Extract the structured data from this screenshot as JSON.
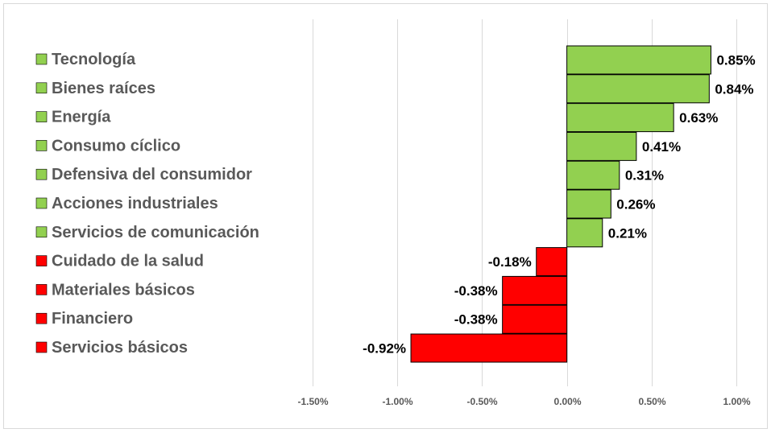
{
  "chart_data": {
    "type": "bar",
    "orientation": "horizontal",
    "categories": [
      "Tecnología",
      "Bienes raíces",
      "Energía",
      "Consumo cíclico",
      "Defensiva del consumidor",
      "Acciones industriales",
      "Servicios de comunicación",
      "Cuidado de la salud",
      "Materiales básicos",
      "Financiero",
      "Servicios básicos"
    ],
    "values": [
      0.85,
      0.84,
      0.63,
      0.41,
      0.31,
      0.26,
      0.21,
      -0.18,
      -0.38,
      -0.38,
      -0.92
    ],
    "value_labels": [
      "0.85%",
      "0.84%",
      "0.63%",
      "0.41%",
      "0.31%",
      "0.26%",
      "0.21%",
      "-0.18%",
      "-0.38%",
      "-0.38%",
      "-0.92%"
    ],
    "xlim": [
      -1.5,
      1.0
    ],
    "x_ticks": [
      -1.5,
      -1.0,
      -0.5,
      0.0,
      0.5,
      1.0
    ],
    "x_tick_labels": [
      "-1.50%",
      "-1.00%",
      "-0.50%",
      "0.00%",
      "0.50%",
      "1.00%"
    ],
    "grid": "vertical",
    "colors": {
      "positive": "#92d050",
      "negative": "#ff0000"
    },
    "legend": "left"
  }
}
